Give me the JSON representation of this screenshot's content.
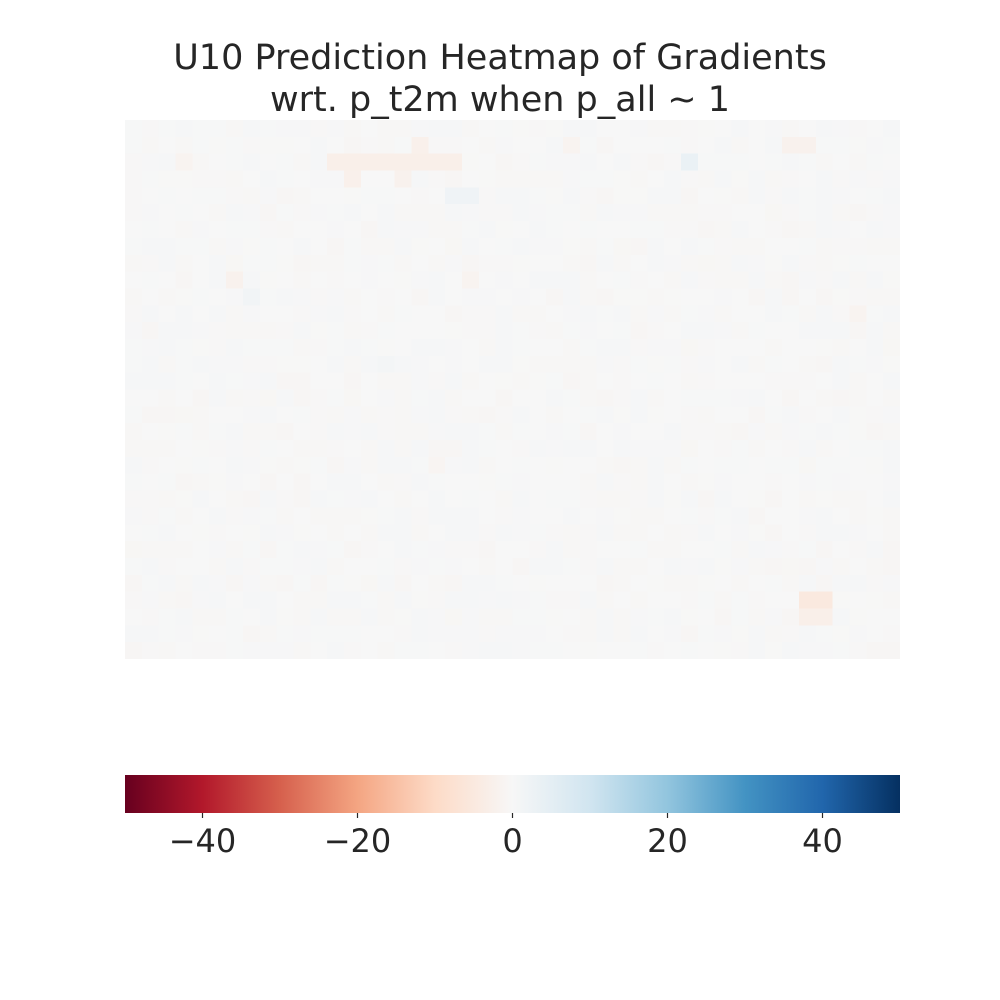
{
  "chart_data": {
    "type": "heatmap",
    "title": "U10 Prediction Heatmap of Gradients\nwrt. p_t2m when p_all ~ 1",
    "title_lines": [
      "U10 Prediction Heatmap of Gradients",
      "wrt. p_t2m when p_all ~ 1"
    ],
    "xlabel": "",
    "ylabel": "",
    "grid": false,
    "colormap": "RdBu",
    "colormap_stops": [
      "#67001f",
      "#b2182b",
      "#d6604d",
      "#f4a582",
      "#fddbc7",
      "#f7f7f7",
      "#d1e5f0",
      "#92c5de",
      "#4393c3",
      "#2166ac",
      "#053061"
    ],
    "value_range": [
      -50,
      50
    ],
    "colorbar": {
      "orientation": "horizontal",
      "placement": "bottom",
      "ticks": [
        -40,
        -20,
        0,
        20,
        40
      ],
      "tick_labels": [
        "−40",
        "−20",
        "0",
        "20",
        "40"
      ]
    },
    "grid_shape": [
      32,
      46
    ],
    "baseline_value": 0,
    "background_jitter": 0.6,
    "notable_cells": [
      {
        "row": 1,
        "col": 17,
        "value": -2.5
      },
      {
        "row": 1,
        "col": 26,
        "value": -1.5
      },
      {
        "row": 1,
        "col": 39,
        "value": -2
      },
      {
        "row": 1,
        "col": 40,
        "value": -2
      },
      {
        "row": 2,
        "col": 12,
        "value": -3
      },
      {
        "row": 2,
        "col": 13,
        "value": -3
      },
      {
        "row": 2,
        "col": 14,
        "value": -3
      },
      {
        "row": 2,
        "col": 15,
        "value": -3
      },
      {
        "row": 2,
        "col": 16,
        "value": -3
      },
      {
        "row": 2,
        "col": 17,
        "value": -3
      },
      {
        "row": 2,
        "col": 18,
        "value": -3
      },
      {
        "row": 2,
        "col": 19,
        "value": -3
      },
      {
        "row": 2,
        "col": 33,
        "value": 3.5
      },
      {
        "row": 2,
        "col": 3,
        "value": -1.5
      },
      {
        "row": 3,
        "col": 13,
        "value": -2.5
      },
      {
        "row": 3,
        "col": 16,
        "value": -2
      },
      {
        "row": 4,
        "col": 19,
        "value": 2
      },
      {
        "row": 4,
        "col": 20,
        "value": 2
      },
      {
        "row": 9,
        "col": 6,
        "value": -2
      },
      {
        "row": 9,
        "col": 20,
        "value": -1.5
      },
      {
        "row": 10,
        "col": 7,
        "value": 1.5
      },
      {
        "row": 11,
        "col": 43,
        "value": -1.5
      },
      {
        "row": 14,
        "col": 15,
        "value": 1
      },
      {
        "row": 20,
        "col": 18,
        "value": -1
      },
      {
        "row": 28,
        "col": 40,
        "value": -5
      },
      {
        "row": 28,
        "col": 41,
        "value": -5
      },
      {
        "row": 29,
        "col": 40,
        "value": -3
      },
      {
        "row": 29,
        "col": 41,
        "value": -3
      }
    ]
  }
}
